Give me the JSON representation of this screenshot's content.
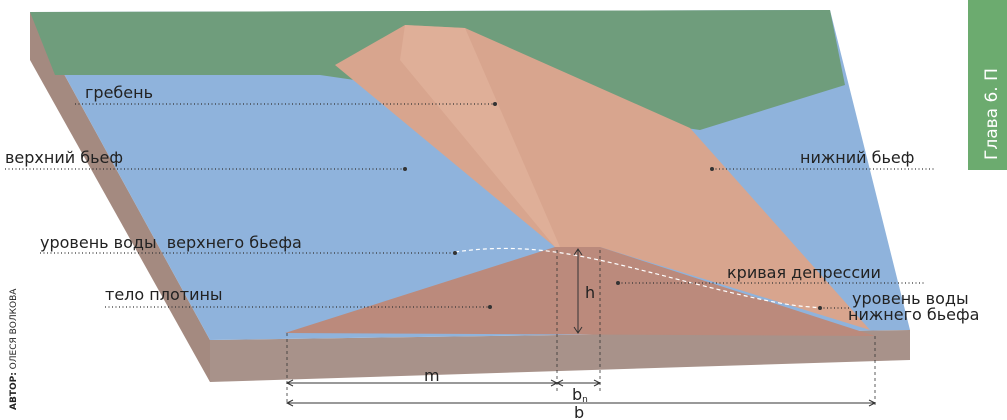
{
  "labels": {
    "crest": "гребень",
    "upstream": "верхний бьеф",
    "downstream": "нижний бьеф",
    "upstream_level": "уровень воды  верхнего бьефа",
    "depression_curve": "кривая депрессии",
    "dam_body": "тело плотины",
    "downstream_level": [
      "уровень воды",
      "нижнего бьефа"
    ]
  },
  "dimensions": {
    "h": "h",
    "m": "m",
    "bn": {
      "base": "b",
      "sub": "n"
    },
    "b": "b"
  },
  "credit": {
    "prefix": "АВТОР:",
    "name": " ОЛЕСЯ ВОЛКОВА"
  },
  "side_tab": "Глава 6. П"
}
